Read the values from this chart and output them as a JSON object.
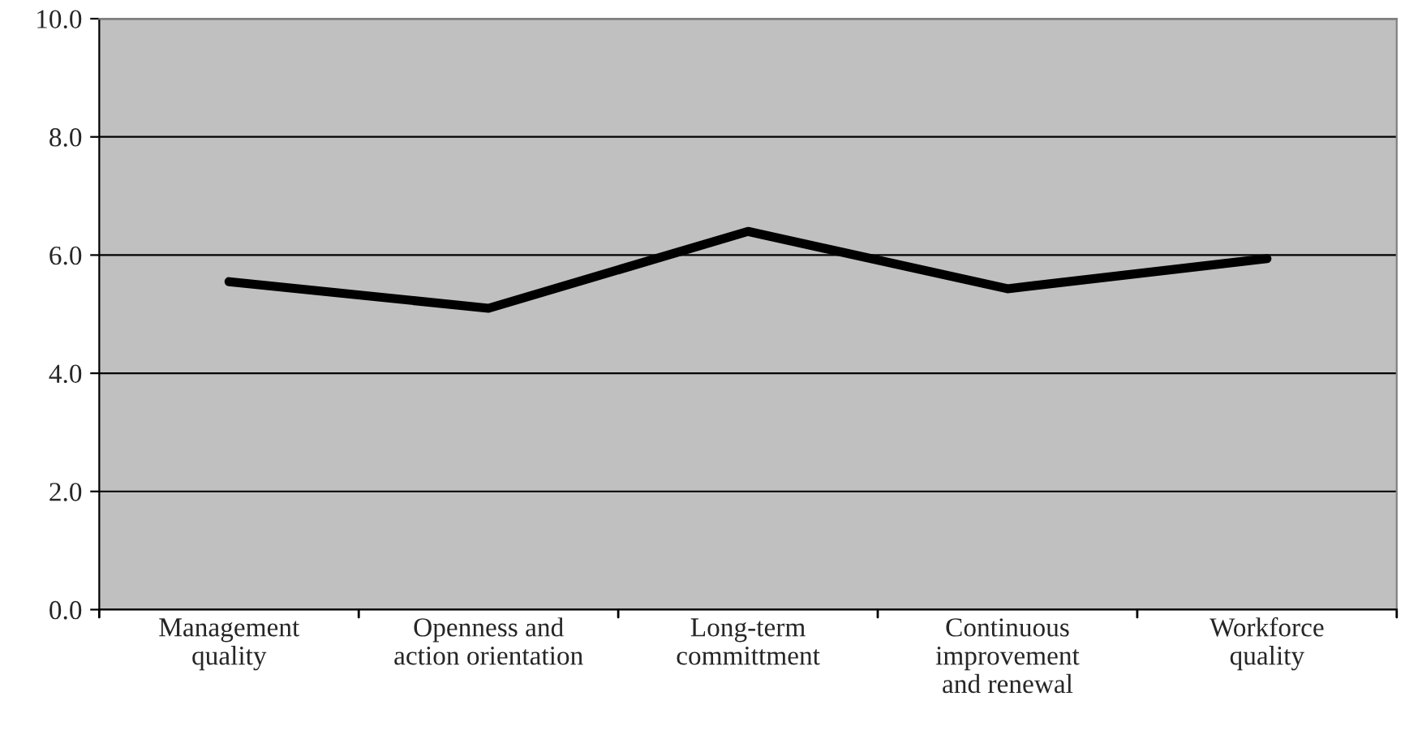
{
  "chart_data": {
    "type": "line",
    "categories": [
      "Management\nquality",
      "Openness and\naction orientation",
      "Long-term\ncommittment",
      "Continuous\nimprovement\nand renewal",
      "Workforce\nquality"
    ],
    "series": [
      {
        "color": "#000000",
        "values": [
          5.55,
          5.1,
          6.4,
          5.43,
          5.94
        ]
      }
    ],
    "ylim": [
      0,
      10
    ],
    "yticks": [
      {
        "value": 0,
        "label": "0.0"
      },
      {
        "value": 2,
        "label": "2.0"
      },
      {
        "value": 4,
        "label": "4.0"
      },
      {
        "value": 6,
        "label": "6.0"
      },
      {
        "value": 8,
        "label": "8.0"
      },
      {
        "value": 10,
        "label": "10.0"
      }
    ],
    "grid": "y",
    "marker": "none",
    "line_style": "solid"
  }
}
